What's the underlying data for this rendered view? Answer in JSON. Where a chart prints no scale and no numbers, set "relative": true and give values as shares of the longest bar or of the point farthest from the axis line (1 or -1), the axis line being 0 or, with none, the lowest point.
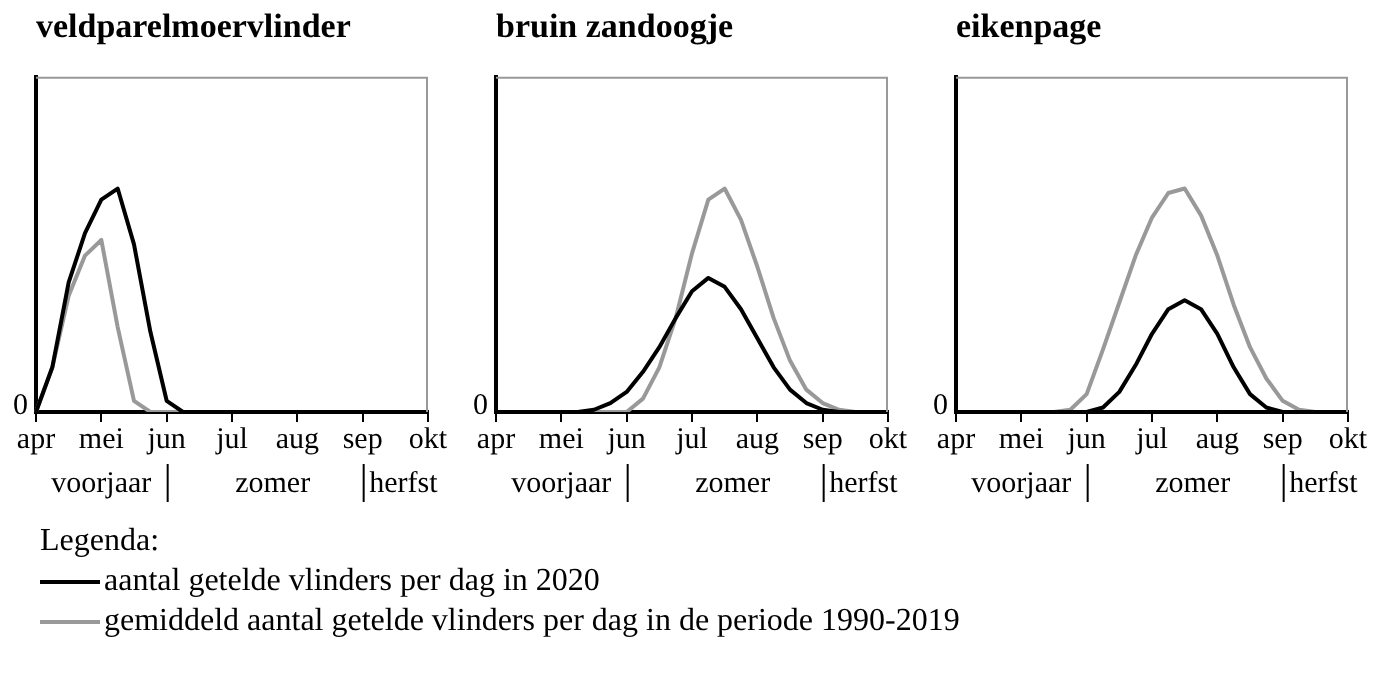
{
  "chart_data": [
    {
      "type": "line",
      "title": "veldparelmoervlinder",
      "relative": true,
      "legend": "bottom",
      "legend_title": "Legenda:",
      "categories": [
        "apr",
        null,
        null,
        null,
        "mei",
        null,
        null,
        null,
        "jun",
        null,
        null,
        null,
        "jul",
        null,
        null,
        null,
        "aug",
        null,
        null,
        null,
        "sep",
        null,
        null,
        null,
        "okt"
      ],
      "annotations": [
        "0",
        "voorjaar",
        "zomer",
        "herfst"
      ],
      "series": [
        {
          "name": "aantal getelde vlinders per dag in 2020",
          "color": "#000000",
          "values": [
            0,
            0.2,
            0.58,
            0.8,
            0.95,
            1,
            0.75,
            0.36,
            0.05,
            0,
            0,
            0,
            0,
            0,
            0,
            0,
            0,
            0,
            0,
            0,
            0,
            0,
            0,
            0,
            0
          ]
        },
        {
          "name": "gemiddeld aantal getelde vlinders per dag in de periode 1990-2019",
          "color": "#999999",
          "values": [
            0,
            0.2,
            0.52,
            0.7,
            0.77,
            0.38,
            0.05,
            0,
            0,
            0,
            0,
            0,
            0,
            0,
            0,
            0,
            0,
            0,
            0,
            0,
            0,
            0,
            0,
            0,
            0
          ]
        }
      ]
    },
    {
      "type": "line",
      "title": "bruin zandoogje",
      "relative": true,
      "categories": [
        "apr",
        null,
        null,
        null,
        "mei",
        null,
        null,
        null,
        "jun",
        null,
        null,
        null,
        "jul",
        null,
        null,
        null,
        "aug",
        null,
        null,
        null,
        "sep",
        null,
        null,
        null,
        "okt"
      ],
      "annotations": [
        "0",
        "voorjaar",
        "zomer",
        "herfst"
      ],
      "series": [
        {
          "color": "#000000",
          "values": [
            0,
            0,
            0,
            0,
            0,
            0,
            0.01,
            0.04,
            0.09,
            0.18,
            0.29,
            0.42,
            0.54,
            0.6,
            0.56,
            0.46,
            0.33,
            0.2,
            0.1,
            0.04,
            0.01,
            0,
            0,
            0,
            0
          ]
        },
        {
          "color": "#999999",
          "values": [
            0,
            0,
            0,
            0,
            0,
            0,
            0,
            0,
            0,
            0.06,
            0.2,
            0.42,
            0.71,
            0.95,
            1,
            0.86,
            0.65,
            0.42,
            0.23,
            0.1,
            0.04,
            0.01,
            0,
            0,
            0
          ]
        }
      ]
    },
    {
      "type": "line",
      "title": "eikenpage",
      "relative": true,
      "categories": [
        "apr",
        null,
        null,
        null,
        "mei",
        null,
        null,
        null,
        "jun",
        null,
        null,
        null,
        "jul",
        null,
        null,
        null,
        "aug",
        null,
        null,
        null,
        "sep",
        null,
        null,
        null,
        "okt"
      ],
      "annotations": [
        "0",
        "voorjaar",
        "zomer",
        "herfst"
      ],
      "series": [
        {
          "color": "#000000",
          "values": [
            0,
            0,
            0,
            0,
            0,
            0,
            0,
            0,
            0,
            0.02,
            0.09,
            0.21,
            0.35,
            0.46,
            0.5,
            0.46,
            0.35,
            0.2,
            0.08,
            0.02,
            0,
            0,
            0,
            0,
            0
          ]
        },
        {
          "color": "#999999",
          "values": [
            0,
            0,
            0,
            0,
            0,
            0,
            0,
            0.01,
            0.08,
            0.28,
            0.49,
            0.7,
            0.87,
            0.98,
            1,
            0.88,
            0.7,
            0.48,
            0.29,
            0.15,
            0.05,
            0.01,
            0,
            0,
            0
          ]
        }
      ]
    }
  ]
}
